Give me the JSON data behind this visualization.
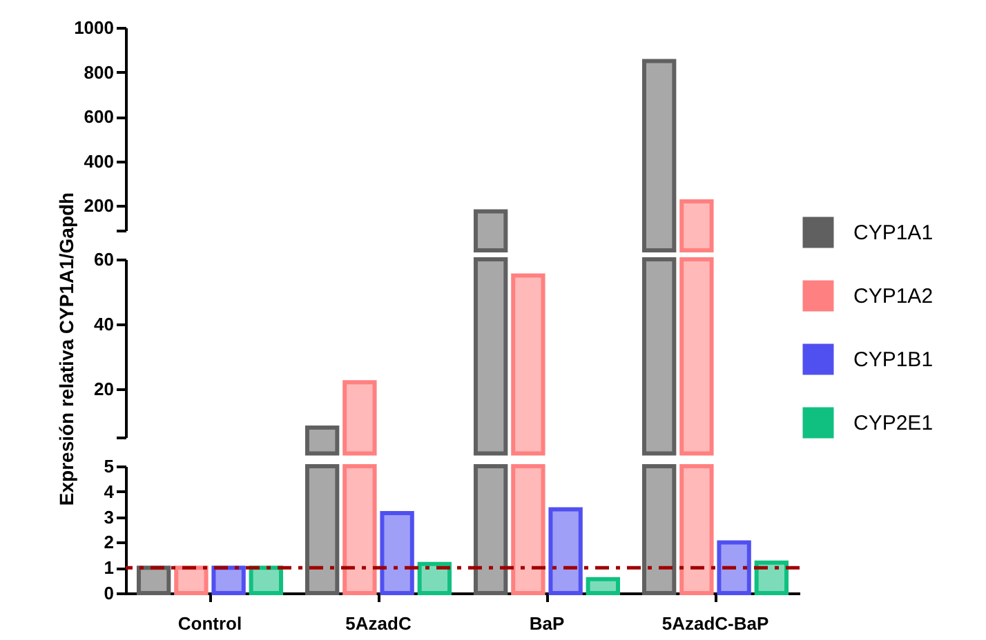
{
  "chart_data": [
    {
      "type": "bar",
      "categories": [
        null,
        null,
        null,
        null
      ],
      "ylim": [
        90,
        1000
      ],
      "yticks": [
        {
          "value": 90,
          "label": null
        },
        200,
        400,
        600,
        800,
        1000
      ],
      "tick_labels": "y",
      "legend": "right",
      "series": [
        {
          "name": "CYP1A1",
          "color": "#606060",
          "values": [
            null,
            null,
            175,
            850
          ]
        },
        {
          "name": "CYP1A2",
          "color": "#ff8080",
          "values": [
            null,
            null,
            null,
            220
          ]
        },
        {
          "name": "CYP1B1",
          "color": "#5050f0",
          "values": [
            null,
            null,
            null,
            null
          ]
        },
        {
          "name": "CYP2E1",
          "color": "#10c080",
          "values": [
            null,
            null,
            null,
            null
          ]
        }
      ]
    },
    {
      "type": "bar",
      "categories": [
        null,
        null,
        null,
        null
      ],
      "ylabel": "Expresión relativa CYP1A1/Gapdh",
      "ylim": [
        5,
        60
      ],
      "yticks": [
        {
          "value": 5,
          "label": null
        },
        20,
        40,
        60
      ],
      "tick_labels": "y",
      "series": [
        {
          "color": "#606060",
          "values": [
            null,
            8,
            60,
            60
          ]
        },
        {
          "color": "#ff8080",
          "values": [
            null,
            22,
            55,
            60
          ]
        },
        {
          "color": "#5050f0",
          "values": [
            null,
            null,
            null,
            null
          ]
        },
        {
          "color": "#10c080",
          "values": [
            null,
            null,
            null,
            null
          ]
        }
      ]
    },
    {
      "type": "bar",
      "categories": [
        "Control",
        "5AzadC",
        "BaP",
        "5AzadC-BaP"
      ],
      "ylim": [
        0,
        5
      ],
      "yticks": [
        0,
        1,
        2,
        3,
        4,
        5
      ],
      "ref_lines": [
        {
          "axis": "y",
          "value": 1,
          "color": "#a00000",
          "line_style": "dashed"
        }
      ],
      "series": [
        {
          "color": "#606060",
          "values": [
            1,
            5,
            5,
            5
          ]
        },
        {
          "color": "#ff8080",
          "values": [
            1,
            5,
            5,
            5
          ]
        },
        {
          "color": "#5050f0",
          "values": [
            1,
            3.15,
            3.3,
            2.0
          ]
        },
        {
          "color": "#10c080",
          "values": [
            1,
            1.15,
            0.55,
            1.2
          ]
        }
      ]
    }
  ]
}
